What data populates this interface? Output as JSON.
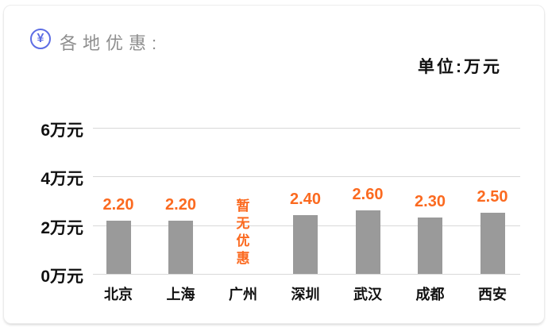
{
  "header": {
    "icon": "yuan-circle-icon",
    "icon_glyph": "¥",
    "title": "各地优惠:",
    "unit_label": "单位:万元"
  },
  "colors": {
    "accent_blue": "#5d6de4",
    "bar_gray": "#9a9a9a",
    "value_orange": "#fb6a20",
    "grid_gray": "#d8d8d8",
    "title_gray": "#8f8f8f",
    "label_black": "#111111"
  },
  "chart_data": {
    "type": "bar",
    "title": "各地优惠",
    "unit": "万元",
    "categories": [
      "北京",
      "上海",
      "广州",
      "深圳",
      "武汉",
      "成都",
      "西安"
    ],
    "values": [
      2.2,
      2.2,
      null,
      2.4,
      2.6,
      2.3,
      2.5
    ],
    "value_labels": [
      "2.20",
      "2.20",
      "暂无优惠",
      "2.40",
      "2.60",
      "2.30",
      "2.50"
    ],
    "no_discount_text": "暂无优惠",
    "y_ticks": [
      0,
      2,
      4,
      6
    ],
    "y_tick_labels": [
      "0万元",
      "2万元",
      "4万元",
      "6万元"
    ],
    "ylim": [
      0,
      7
    ],
    "grid": true,
    "legend": null,
    "bar_color": "#9a9a9a",
    "value_label_color": "#fb6a20"
  }
}
